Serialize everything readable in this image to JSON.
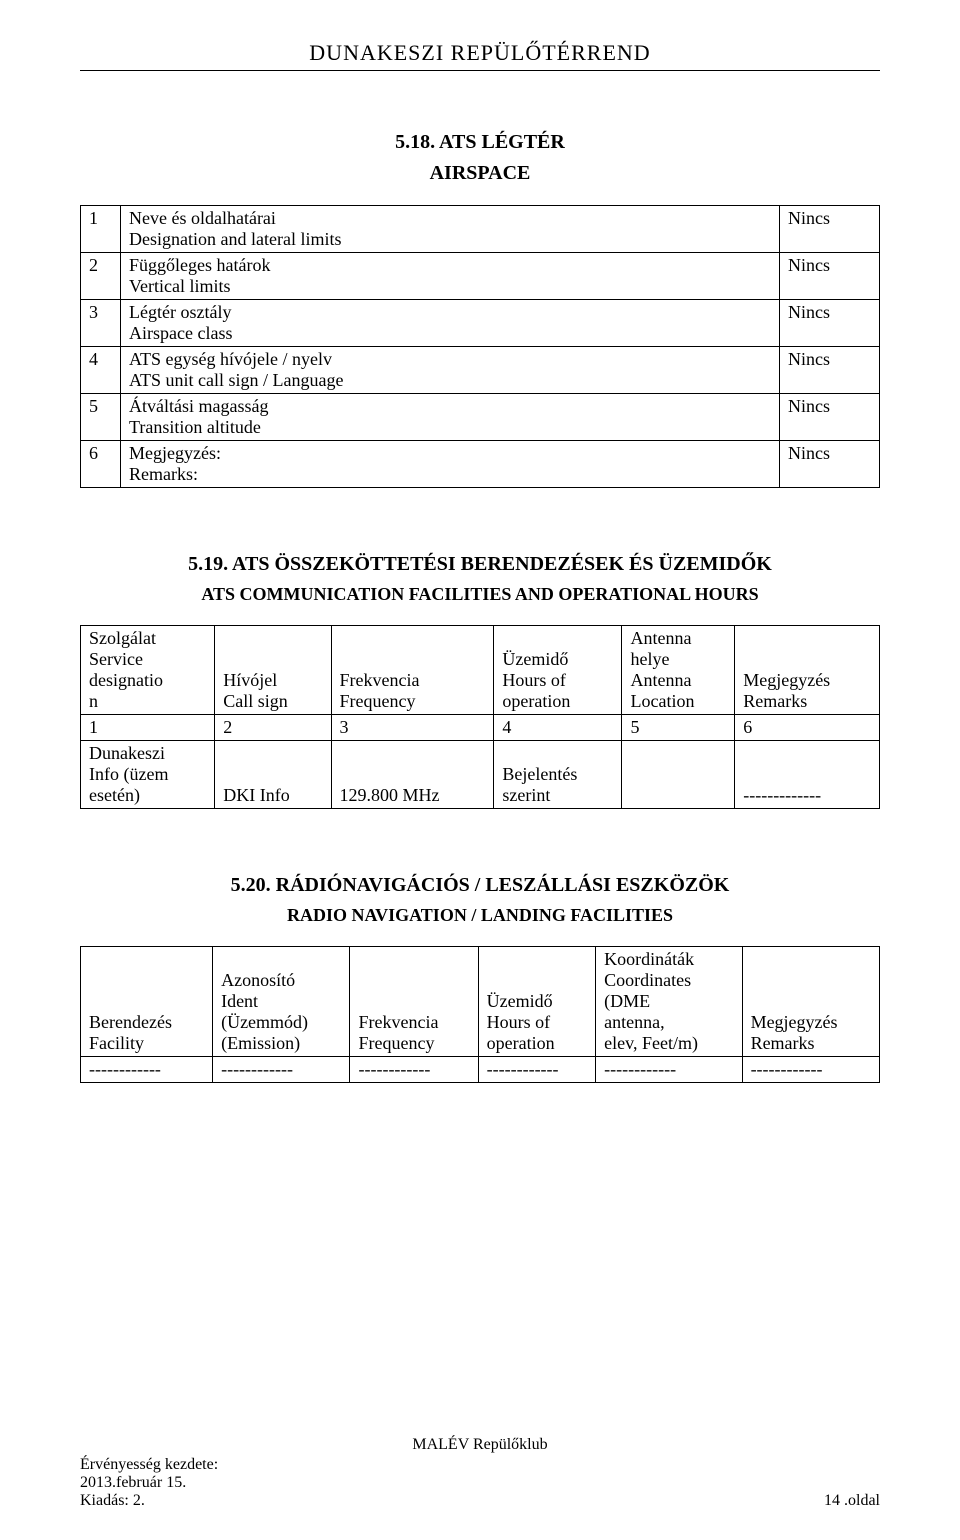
{
  "header": {
    "title": "DUNAKESZI REPÜLŐTÉRREND"
  },
  "section518": {
    "number": "5.18. ATS LÉGTÉR",
    "subtitle": "AIRSPACE",
    "rows": [
      {
        "num": "1",
        "line1": "Neve és oldalhatárai",
        "line2": "Designation and lateral limits",
        "value": "Nincs"
      },
      {
        "num": "2",
        "line1": "Függőleges határok",
        "line2": "Vertical limits",
        "value": "Nincs"
      },
      {
        "num": "3",
        "line1": "Légtér osztály",
        "line2": "Airspace class",
        "value": "Nincs"
      },
      {
        "num": "4",
        "line1": "ATS egység hívójele / nyelv",
        "line2": "ATS unit call sign / Language",
        "value": "Nincs"
      },
      {
        "num": "5",
        "line1": "Átváltási magasság",
        "line2": "Transition altitude",
        "value": "Nincs"
      },
      {
        "num": "6",
        "line1": "Megjegyzés:",
        "line2": "Remarks:",
        "value": "Nincs"
      }
    ]
  },
  "section519": {
    "number": "5.19. ATS ÖSSZEKÖTTETÉSI BERENDEZÉSEK ÉS ÜZEMIDŐK",
    "subtitle": "ATS COMMUNICATION FACILITIES AND OPERATIONAL HOURS",
    "headers": {
      "c1l1": "Szolgálat",
      "c1l2": "Service",
      "c1l3": "designatio",
      "c1l4": "n",
      "c2l1": "Hívójel",
      "c2l2": "Call sign",
      "c3l1": "Frekvencia",
      "c3l2": "Frequency",
      "c4l1": "Üzemidő",
      "c4l2": "Hours of",
      "c4l3": "operation",
      "c5l1": "Antenna",
      "c5l2": "helye",
      "c5l3": "Antenna",
      "c5l4": "Location",
      "c6l1": "Megjegyzés",
      "c6l2": "Remarks"
    },
    "numrow": {
      "c1": "1",
      "c2": "2",
      "c3": "3",
      "c4": "4",
      "c5": "5",
      "c6": "6"
    },
    "datarow": {
      "c1l1": "Dunakeszi",
      "c1l2": "Info (üzem",
      "c1l3": "esetén)",
      "c2": "DKI Info",
      "c3": "129.800 MHz",
      "c4l1": "Bejelentés",
      "c4l2": "szerint",
      "c5": "",
      "c6": "-------------"
    }
  },
  "section520": {
    "number": "5.20. RÁDIÓNAVIGÁCIÓS / LESZÁLLÁSI ESZKÖZÖK",
    "subtitle": "RADIO NAVIGATION / LANDING FACILITIES",
    "headers": {
      "c1l1": "Berendezés",
      "c1l2": "Facility",
      "c2l1": "Azonosító",
      "c2l2": "Ident",
      "c2l3": "(Üzemmód)",
      "c2l4": "(Emission)",
      "c3l1": "Frekvencia",
      "c3l2": "Frequency",
      "c4l1": "Üzemidő",
      "c4l2": "Hours of",
      "c4l3": "operation",
      "c5l1": "Koordináták",
      "c5l2": "Coordinates",
      "c5l3": "(DME",
      "c5l4": "antenna,",
      "c5l5": "elev, Feet/m)",
      "c6l1": "Megjegyzés",
      "c6l2": "Remarks"
    },
    "datarow": {
      "c1": "------------",
      "c2": "------------",
      "c3": "------------",
      "c4": "------------",
      "c5": "------------",
      "c6": "------------"
    }
  },
  "footer": {
    "center": "MALÉV Repülőklub",
    "left_line1": "Érvényesség kezdete:",
    "left_line2": "2013.február 15.",
    "left_line3": "Kiadás: 2.",
    "right": "14 .oldal"
  }
}
